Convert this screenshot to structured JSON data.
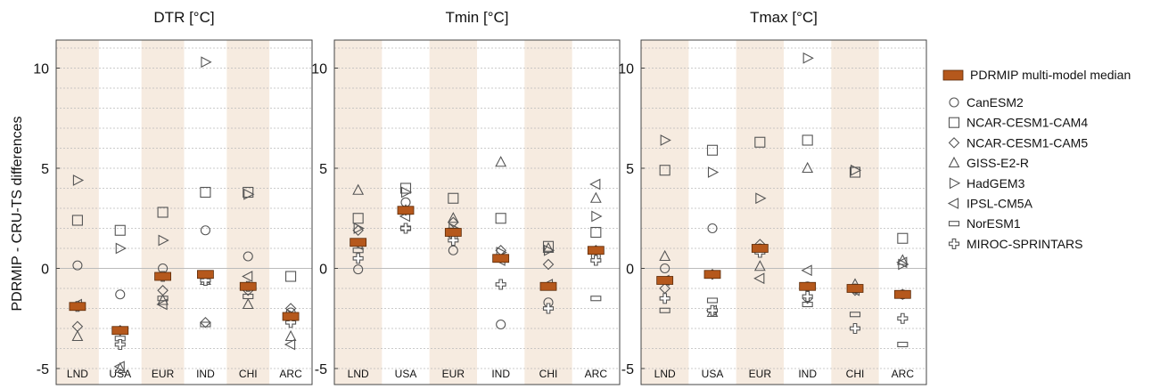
{
  "chart_data": {
    "type": "scatter",
    "ylabel": "PDRMIP - CRU-TS differences",
    "ylim": [
      -5.8,
      11.4
    ],
    "yticks": [
      -5,
      0,
      5,
      10
    ],
    "ytick_labels": [
      "-5",
      "0",
      "5",
      "10"
    ],
    "categories": [
      "LND",
      "USA",
      "EUR",
      "IND",
      "CHI",
      "ARC"
    ],
    "shaded_categories": [
      "LND",
      "EUR",
      "CHI"
    ],
    "legend": {
      "placement": "right",
      "median_label": "PDRMIP multi-model median",
      "models": [
        {
          "name": "CanESM2",
          "marker": "circle-icon"
        },
        {
          "name": "NCAR-CESM1-CAM4",
          "marker": "square-icon"
        },
        {
          "name": "NCAR-CESM1-CAM5",
          "marker": "diamond-icon"
        },
        {
          "name": "GISS-E2-R",
          "marker": "triangle-up-icon"
        },
        {
          "name": "HadGEM3",
          "marker": "triangle-right-icon"
        },
        {
          "name": "IPSL-CM5A",
          "marker": "triangle-left-icon"
        },
        {
          "name": "NorESM1",
          "marker": "flat-rect-icon"
        },
        {
          "name": "MIROC-SPRINTARS",
          "marker": "cross-icon"
        }
      ]
    },
    "colors": {
      "median": "#b5581c",
      "shade": "#f6ebe0",
      "marker": "#555555"
    },
    "panels": [
      {
        "title": "DTR",
        "unit": "[°C]",
        "median": [
          -1.9,
          -3.1,
          -0.4,
          -0.3,
          -0.9,
          -2.4
        ],
        "values": {
          "CanESM2": [
            0.15,
            -1.3,
            0.0,
            1.9,
            0.6,
            -2.2
          ],
          "NCAR-CESM1-CAM4": [
            2.4,
            1.9,
            2.8,
            3.8,
            3.8,
            -0.4
          ],
          "NCAR-CESM1-CAM5": [
            -2.9,
            -3.1,
            -1.1,
            -2.7,
            -1.1,
            -2.0
          ],
          "GISS-E2-R": [
            -3.4,
            -5.0,
            -1.6,
            -0.6,
            -1.8,
            -3.4
          ],
          "HadGEM3": [
            4.4,
            1.0,
            1.4,
            10.3,
            3.7,
            -2.3
          ],
          "IPSL-CM5A": [
            -1.8,
            -4.9,
            -1.8,
            -0.5,
            -0.4,
            -3.8
          ],
          "NorESM1": [
            -1.9,
            -3.5,
            -1.5,
            -2.8,
            -1.4,
            -2.5
          ],
          "MIROC-SPRINTARS": [
            -1.9,
            -3.8,
            -0.4,
            -0.6,
            -0.9,
            -2.7
          ]
        }
      },
      {
        "title": "Tmin",
        "unit": "[°C]",
        "median": [
          1.3,
          2.9,
          1.8,
          0.5,
          -0.9,
          0.9
        ],
        "values": {
          "CanESM2": [
            -0.05,
            3.3,
            0.9,
            -2.8,
            -1.7,
            0.6
          ],
          "NCAR-CESM1-CAM4": [
            2.5,
            4.0,
            3.5,
            2.5,
            1.1,
            1.8
          ],
          "NCAR-CESM1-CAM5": [
            1.9,
            2.9,
            2.3,
            0.9,
            0.2,
            0.9
          ],
          "GISS-E2-R": [
            3.9,
            2.9,
            2.5,
            5.3,
            1.0,
            3.5
          ],
          "HadGEM3": [
            2.0,
            3.8,
            2.0,
            0.8,
            0.9,
            2.6
          ],
          "IPSL-CM5A": [
            1.2,
            2.6,
            1.6,
            0.4,
            -0.8,
            4.2
          ],
          "NorESM1": [
            0.9,
            2.0,
            1.9,
            0.5,
            -0.9,
            -1.5
          ],
          "MIROC-SPRINTARS": [
            0.5,
            2.0,
            1.4,
            -0.8,
            -2.0,
            0.4
          ]
        }
      },
      {
        "title": "Tmax",
        "unit": "[°C]",
        "median": [
          -0.6,
          -0.3,
          1.0,
          -0.9,
          -1.0,
          -1.3
        ],
        "values": {
          "CanESM2": [
            0.0,
            2.0,
            1.0,
            -0.9,
            -1.0,
            -1.3
          ],
          "NCAR-CESM1-CAM4": [
            4.9,
            5.9,
            6.3,
            6.4,
            4.8,
            1.5
          ],
          "NCAR-CESM1-CAM5": [
            -1.0,
            -0.3,
            1.2,
            -1.5,
            -1.1,
            -1.3
          ],
          "GISS-E2-R": [
            0.6,
            -2.2,
            0.1,
            5.0,
            -0.8,
            0.4
          ],
          "HadGEM3": [
            6.4,
            4.8,
            3.5,
            10.5,
            4.9,
            0.2
          ],
          "IPSL-CM5A": [
            -0.6,
            -2.1,
            -0.5,
            -0.1,
            -1.1,
            0.3
          ],
          "NorESM1": [
            -2.1,
            -1.6,
            0.9,
            -1.8,
            -2.3,
            -3.8
          ],
          "MIROC-SPRINTARS": [
            -1.5,
            -2.1,
            0.8,
            -1.4,
            -3.0,
            -2.5
          ]
        }
      }
    ]
  }
}
